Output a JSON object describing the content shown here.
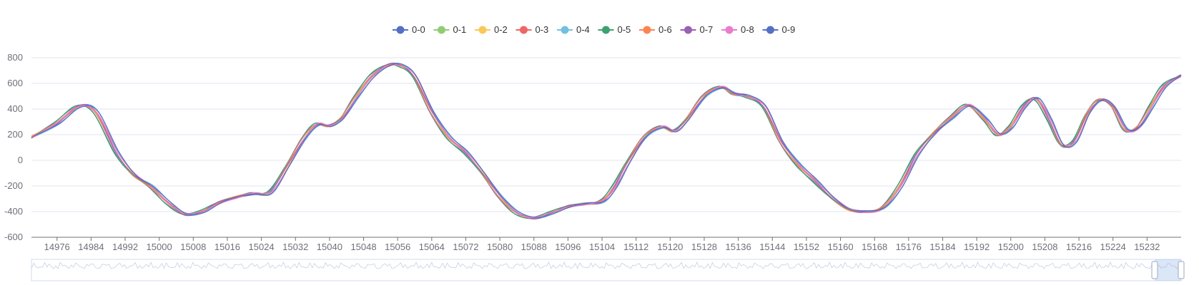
{
  "chart_data": {
    "type": "line",
    "title": "",
    "xlabel": "",
    "ylabel": "",
    "ylim": [
      -600,
      800
    ],
    "xlim": [
      14970,
      15240
    ],
    "grid": true,
    "legend_placement": "top-center",
    "y_ticks": [
      "800",
      "600",
      "400",
      "200",
      "0",
      "-200",
      "-400",
      "-600"
    ],
    "x_ticks": [
      "14976",
      "14984",
      "14992",
      "15000",
      "15008",
      "15016",
      "15024",
      "15032",
      "15040",
      "15048",
      "15056",
      "15064",
      "15072",
      "15080",
      "15088",
      "15096",
      "15104",
      "15112",
      "15120",
      "15128",
      "15136",
      "15144",
      "15152",
      "15160",
      "15168",
      "15176",
      "15184",
      "15192",
      "15200",
      "15208",
      "15216",
      "15224",
      "15232"
    ],
    "base_curve": {
      "x": [
        14970,
        14976,
        14981,
        14985,
        14990,
        14994,
        14998,
        15002,
        15006,
        15010,
        15014,
        15018,
        15022,
        15026,
        15030,
        15034,
        15037,
        15040,
        15043,
        15046,
        15050,
        15054,
        15057,
        15060,
        15064,
        15068,
        15072,
        15076,
        15080,
        15084,
        15088,
        15092,
        15096,
        15100,
        15104,
        15107,
        15110,
        15114,
        15118,
        15121,
        15124,
        15128,
        15132,
        15135,
        15138,
        15142,
        15146,
        15150,
        15154,
        15158,
        15162,
        15166,
        15170,
        15174,
        15178,
        15182,
        15186,
        15190,
        15194,
        15197,
        15200,
        15203,
        15206,
        15209,
        15212,
        15215,
        15218,
        15221,
        15224,
        15227,
        15230,
        15233,
        15236,
        15240
      ],
      "y": [
        180,
        290,
        420,
        380,
        60,
        -110,
        -200,
        -330,
        -420,
        -400,
        -330,
        -290,
        -260,
        -250,
        -50,
        170,
        280,
        270,
        330,
        480,
        660,
        745,
        735,
        650,
        380,
        180,
        60,
        -100,
        -280,
        -410,
        -450,
        -410,
        -360,
        -340,
        -320,
        -200,
        -20,
        180,
        260,
        230,
        320,
        500,
        570,
        520,
        500,
        420,
        150,
        -30,
        -160,
        -290,
        -380,
        -400,
        -370,
        -200,
        50,
        210,
        330,
        430,
        320,
        200,
        260,
        420,
        480,
        320,
        120,
        150,
        360,
        470,
        420,
        240,
        260,
        420,
        580,
        660
      ]
    },
    "series": [
      {
        "name": "0-0",
        "color": "#5470c6"
      },
      {
        "name": "0-1",
        "color": "#91cc75"
      },
      {
        "name": "0-2",
        "color": "#fac858"
      },
      {
        "name": "0-3",
        "color": "#ee6666"
      },
      {
        "name": "0-4",
        "color": "#73c0de"
      },
      {
        "name": "0-5",
        "color": "#3ba272"
      },
      {
        "name": "0-6",
        "color": "#fc8452"
      },
      {
        "name": "0-7",
        "color": "#9a60b4"
      },
      {
        "name": "0-8",
        "color": "#ea7ccc"
      },
      {
        "name": "0-9",
        "color": "#5470c6"
      }
    ]
  },
  "data_zoom": {
    "start": 0.977,
    "end": 1.0,
    "handle_color": "#a7b7cc"
  }
}
